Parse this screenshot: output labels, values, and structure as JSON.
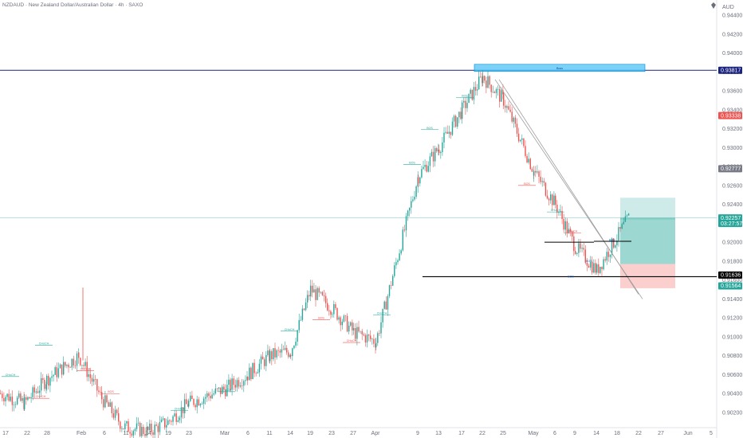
{
  "header": {
    "title": "NZDAUD · New Zealand Dollar/Australian Dollar · 4h · SAXO",
    "currency": "AUD"
  },
  "colors": {
    "up": "#26a69a",
    "down": "#ef5350",
    "level_line": "#1a237e",
    "bos_line": "#000000",
    "target_zone": "#26a69a",
    "stop_zone": "#ef5350",
    "boss_box": "#4fc3f7"
  },
  "annotations": {
    "boss_label": "Boss",
    "bos_label": "BOS",
    "bos_small_a": "BOS",
    "bos_small_b": "BOS",
    "choch_label": "CHoCH"
  },
  "price_tags": [
    {
      "name": "level-high",
      "value": "0.93817",
      "color": "#1a237e"
    },
    {
      "name": "level-red",
      "value": "0.93338",
      "color": "#ef5350"
    },
    {
      "name": "level-grey",
      "value": "0.92777",
      "color": "#787b86"
    },
    {
      "name": "last-price",
      "value": "0.92257",
      "sub": "03:27:57",
      "color": "#26a69a"
    },
    {
      "name": "level-black",
      "value": "0.91636",
      "color": "#000000"
    },
    {
      "name": "level-green",
      "value": "0.91564",
      "color": "#26a69a"
    }
  ],
  "chart_data": {
    "type": "candlestick",
    "title": "NZDAUD · New Zealand Dollar/Australian Dollar · 4h · SAXO",
    "y_unit": "AUD",
    "ylim": [
      0.9013,
      0.9457
    ],
    "x_tick_labels": [
      "17",
      "22",
      "28",
      "Feb",
      "6",
      "11",
      "14",
      "19",
      "23",
      "Mar",
      "6",
      "11",
      "14",
      "19",
      "23",
      "27",
      "Apr",
      "9",
      "13",
      "17",
      "22",
      "25",
      "May",
      "6",
      "9",
      "14",
      "18",
      "22",
      "27",
      "Jun",
      "5"
    ],
    "y_tick_labels": [
      "0.94400",
      "0.94200",
      "0.94000",
      "0.93800",
      "0.93600",
      "0.93400",
      "0.93200",
      "0.93000",
      "0.92800",
      "0.92600",
      "0.92400",
      "0.92200",
      "0.92000",
      "0.91800",
      "0.91600",
      "0.91400",
      "0.91200",
      "0.91000",
      "0.90800",
      "0.90600",
      "0.90400",
      "0.90200"
    ],
    "price_path": [
      {
        "t": "17",
        "price": 0.904
      },
      {
        "t": "22",
        "price": 0.903
      },
      {
        "t": "28",
        "price": 0.9055
      },
      {
        "t": "Feb",
        "price": 0.908
      },
      {
        "t": "6",
        "price": 0.9035
      },
      {
        "t": "11",
        "price": 0.9005
      },
      {
        "t": "14",
        "price": 0.9
      },
      {
        "t": "19",
        "price": 0.901
      },
      {
        "t": "23",
        "price": 0.903
      },
      {
        "t": "Mar",
        "price": 0.9045
      },
      {
        "t": "6",
        "price": 0.906
      },
      {
        "t": "11",
        "price": 0.908
      },
      {
        "t": "14",
        "price": 0.9085
      },
      {
        "t": "19",
        "price": 0.915
      },
      {
        "t": "23",
        "price": 0.913
      },
      {
        "t": "27",
        "price": 0.9105
      },
      {
        "t": "Apr",
        "price": 0.9095
      },
      {
        "t": "9",
        "price": 0.927
      },
      {
        "t": "13",
        "price": 0.93
      },
      {
        "t": "17",
        "price": 0.934
      },
      {
        "t": "22",
        "price": 0.9375
      },
      {
        "t": "25",
        "price": 0.935
      },
      {
        "t": "May",
        "price": 0.9275
      },
      {
        "t": "6",
        "price": 0.924
      },
      {
        "t": "9",
        "price": 0.9195
      },
      {
        "t": "14",
        "price": 0.917
      },
      {
        "t": "18",
        "price": 0.9226
      }
    ],
    "levels": [
      {
        "label": "Boss",
        "price": 0.93817
      },
      {
        "label": "BOS",
        "price": 0.91636
      }
    ],
    "position": {
      "entry": 0.918,
      "target": 0.9245,
      "stop": 0.91564
    },
    "trendline": {
      "from": {
        "t": "22",
        "price": 0.937
      },
      "to": {
        "t": "18",
        "price": 0.9143
      }
    },
    "legend": "none",
    "grid": false
  }
}
